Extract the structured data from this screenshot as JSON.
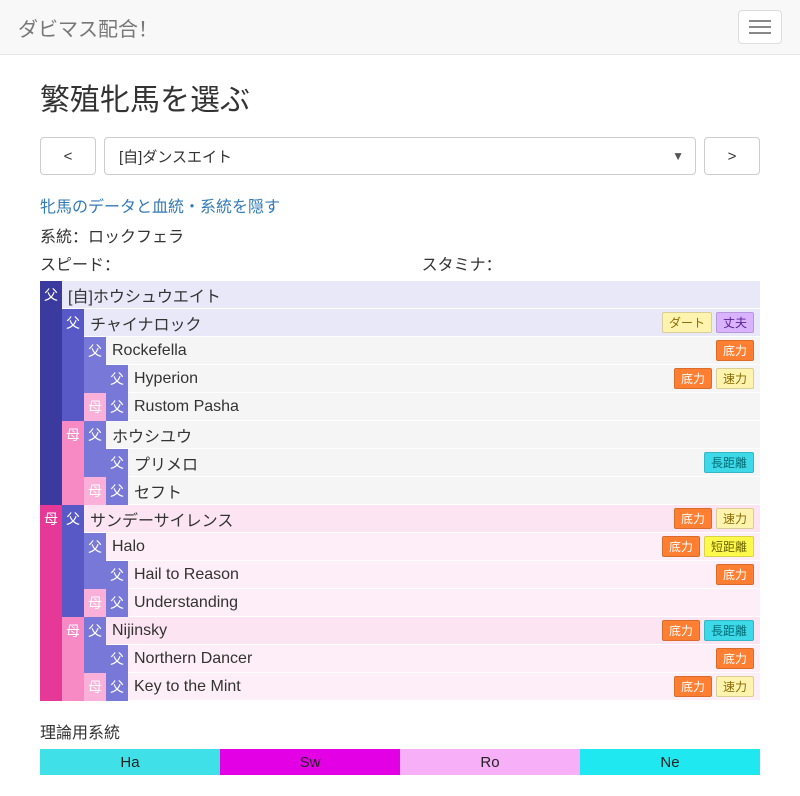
{
  "header": {
    "brand": "ダビマス配合！"
  },
  "page": {
    "title": "繁殖牝馬を選ぶ",
    "prev_label": "<",
    "next_label": ">",
    "selected_mare": "[自]ダンスエイト",
    "hide_link": "牝馬のデータと血統・系統を隠す",
    "lineage_label": "系統：ロックフェラ",
    "speed_label": "スピード：",
    "stamina_label": "スタミナ："
  },
  "badge_colors": {
    "ダート": {
      "bg": "#fff3b0",
      "fg": "#8a6d00"
    },
    "丈夫": {
      "bg": "#d9b3ff",
      "fg": "#5a1e99"
    },
    "底力": {
      "bg": "#ff7f32",
      "fg": "#ffffff"
    },
    "速力": {
      "bg": "#fff3b0",
      "fg": "#8a6d00"
    },
    "長距離": {
      "bg": "#3dd9e8",
      "fg": "#046b75"
    },
    "短距離": {
      "bg": "#fff94d",
      "fg": "#6b6400"
    }
  },
  "pedigree": [
    {
      "cells": [
        {
          "t": "父",
          "c": "c-fa"
        }
      ],
      "name": "[自]ホウシュウエイト",
      "bg": "bg-blue-lt",
      "badges": []
    },
    {
      "cells": [
        {
          "t": "",
          "c": "c-fa"
        },
        {
          "t": "父",
          "c": "c-fa2"
        }
      ],
      "name": "チャイナロック",
      "bg": "bg-blue-lt",
      "badges": [
        "ダート",
        "丈夫"
      ]
    },
    {
      "cells": [
        {
          "t": "",
          "c": "c-fa"
        },
        {
          "t": "",
          "c": "c-fa2"
        },
        {
          "t": "父",
          "c": "c-fa3"
        }
      ],
      "name": "Rockefella",
      "bg": "",
      "badges": [
        "底力"
      ]
    },
    {
      "cells": [
        {
          "t": "",
          "c": "c-fa"
        },
        {
          "t": "",
          "c": "c-fa2"
        },
        {
          "t": "",
          "c": "c-fa3"
        },
        {
          "t": "父",
          "c": "c-fa3"
        }
      ],
      "name": "Hyperion",
      "bg": "",
      "badges": [
        "底力",
        "速力"
      ]
    },
    {
      "cells": [
        {
          "t": "",
          "c": "c-fa"
        },
        {
          "t": "",
          "c": "c-fa2"
        },
        {
          "t": "母",
          "c": "c-mo3"
        },
        {
          "t": "父",
          "c": "c-fa3"
        }
      ],
      "name": "Rustom Pasha",
      "bg": "",
      "badges": []
    },
    {
      "cells": [
        {
          "t": "",
          "c": "c-fa"
        },
        {
          "t": "母",
          "c": "c-mo2"
        },
        {
          "t": "父",
          "c": "c-fa3"
        }
      ],
      "name": "ホウシユウ",
      "bg": "",
      "badges": []
    },
    {
      "cells": [
        {
          "t": "",
          "c": "c-fa"
        },
        {
          "t": "",
          "c": "c-mo2"
        },
        {
          "t": "",
          "c": "c-fa3"
        },
        {
          "t": "父",
          "c": "c-fa3"
        }
      ],
      "name": "プリメロ",
      "bg": "",
      "badges": [
        "長距離"
      ]
    },
    {
      "cells": [
        {
          "t": "",
          "c": "c-fa"
        },
        {
          "t": "",
          "c": "c-mo2"
        },
        {
          "t": "母",
          "c": "c-mo3"
        },
        {
          "t": "父",
          "c": "c-fa3"
        }
      ],
      "name": "セフト",
      "bg": "",
      "badges": []
    },
    {
      "cells": [
        {
          "t": "母",
          "c": "c-mo"
        },
        {
          "t": "父",
          "c": "c-fa2"
        }
      ],
      "name": "サンデーサイレンス",
      "bg": "bg-pink-lt",
      "badges": [
        "底力",
        "速力"
      ]
    },
    {
      "cells": [
        {
          "t": "",
          "c": "c-mo"
        },
        {
          "t": "",
          "c": "c-fa2"
        },
        {
          "t": "父",
          "c": "c-fa3"
        }
      ],
      "name": "Halo",
      "bg": "bg-pink-lt2",
      "badges": [
        "底力",
        "短距離"
      ]
    },
    {
      "cells": [
        {
          "t": "",
          "c": "c-mo"
        },
        {
          "t": "",
          "c": "c-fa2"
        },
        {
          "t": "",
          "c": "c-fa3"
        },
        {
          "t": "父",
          "c": "c-fa3"
        }
      ],
      "name": "Hail to Reason",
      "bg": "bg-pink-lt2",
      "badges": [
        "底力"
      ]
    },
    {
      "cells": [
        {
          "t": "",
          "c": "c-mo"
        },
        {
          "t": "",
          "c": "c-fa2"
        },
        {
          "t": "母",
          "c": "c-mo3"
        },
        {
          "t": "父",
          "c": "c-fa3"
        }
      ],
      "name": "Understanding",
      "bg": "bg-pink-lt2",
      "badges": []
    },
    {
      "cells": [
        {
          "t": "",
          "c": "c-mo"
        },
        {
          "t": "母",
          "c": "c-mo2"
        },
        {
          "t": "父",
          "c": "c-fa3"
        }
      ],
      "name": "Nijinsky",
      "bg": "bg-pink-lt",
      "badges": [
        "底力",
        "長距離"
      ]
    },
    {
      "cells": [
        {
          "t": "",
          "c": "c-mo"
        },
        {
          "t": "",
          "c": "c-mo2"
        },
        {
          "t": "",
          "c": "c-fa3"
        },
        {
          "t": "父",
          "c": "c-fa3"
        }
      ],
      "name": "Northern Dancer",
      "bg": "bg-pink-lt2",
      "badges": [
        "底力"
      ]
    },
    {
      "cells": [
        {
          "t": "",
          "c": "c-mo"
        },
        {
          "t": "",
          "c": "c-mo2"
        },
        {
          "t": "母",
          "c": "c-mo3"
        },
        {
          "t": "父",
          "c": "c-fa3"
        }
      ],
      "name": "Key to the Mint",
      "bg": "bg-pink-lt2",
      "badges": [
        "底力",
        "速力"
      ]
    }
  ],
  "theory": {
    "label": "理論用系統",
    "segments": [
      {
        "label": "Ha",
        "color": "#40e0e8"
      },
      {
        "label": "Sw",
        "color": "#e400e4"
      },
      {
        "label": "Ro",
        "color": "#f7b0f7"
      },
      {
        "label": "Ne",
        "color": "#20e8f0"
      }
    ]
  }
}
